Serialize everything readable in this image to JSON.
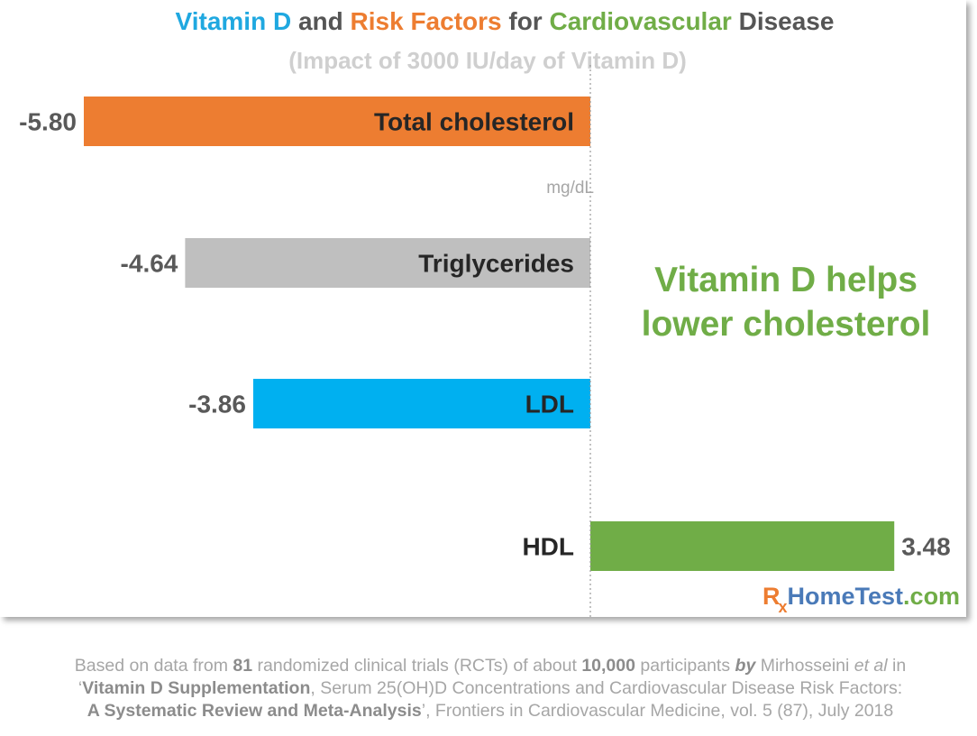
{
  "title": {
    "part1": "Vitamin D",
    "part2": " and ",
    "part3": "Risk Factors",
    "part4": " for ",
    "part5": "Cardiovascular",
    "part6": " Disease"
  },
  "subtitle": "(Impact of 3000 IU/day of Vitamin D)",
  "unit_label": "mg/dL",
  "callout": {
    "line1": "Vitamin D helps",
    "line2": "lower cholesterol"
  },
  "colors": {
    "title_blue": "#1fa8e0",
    "title_orange": "#ed7d31",
    "title_green": "#70ad47",
    "title_gray": "#555555"
  },
  "chart_data": {
    "type": "bar",
    "orientation": "horizontal",
    "categories": [
      "Total cholesterol",
      "Triglycerides",
      "LDL",
      "HDL"
    ],
    "values": [
      -5.8,
      -4.64,
      -3.86,
      3.48
    ],
    "value_labels": [
      "-5.80",
      "-4.64",
      "-3.86",
      "3.48"
    ],
    "colors": [
      "#ed7d31",
      "#bfbfbf",
      "#00b0f0",
      "#70ad47"
    ],
    "title": "Vitamin D and Risk Factors for Cardiovascular Disease",
    "subtitle": "(Impact of 3000 IU/day of Vitamin D)",
    "unit": "mg/dL",
    "xlim": [
      -5.8,
      3.48
    ],
    "zero_line": "dotted",
    "grid": false
  },
  "logo": {
    "rx": "R",
    "x": "x",
    "home": "HomeTest",
    "dom": ".com"
  },
  "footnote": {
    "l1a": "Based on data from ",
    "l1b": "81",
    "l1c": " randomized clinical trials (RCTs) of about ",
    "l1d": "10,000",
    "l1e": " participants ",
    "l1f": "by",
    "l1g": " Mirhosseini ",
    "l1h": "et al",
    "l1i": " in",
    "l2a": "‘",
    "l2b": "Vitamin D Supplementation",
    "l2c": ", Serum 25(OH)D Concentrations and Cardiovascular Disease Risk Factors:",
    "l3a": "A Systematic Review and Meta-Analysis",
    "l3b": "’, Frontiers in Cardiovascular Medicine, vol. 5 (87), July 2018"
  }
}
